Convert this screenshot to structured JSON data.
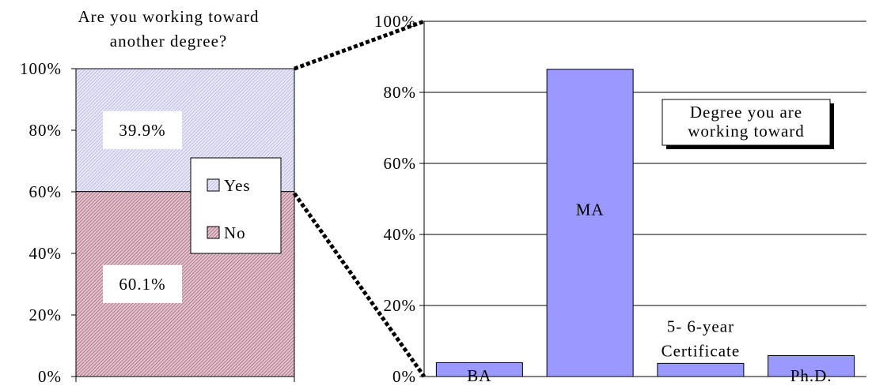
{
  "chart_data": [
    {
      "type": "bar",
      "stacked": true,
      "title": "Are you working toward another degree?",
      "title_lines": [
        "Are you working toward",
        "another degree?"
      ],
      "ylim": [
        0,
        100
      ],
      "y_ticks": [
        "0%",
        "20%",
        "40%",
        "60%",
        "80%",
        "100%"
      ],
      "series": [
        {
          "name": "No",
          "value": 60.1,
          "label": "60.1%",
          "color": "#c58b9e"
        },
        {
          "name": "Yes",
          "value": 39.9,
          "label": "39.9%",
          "color": "#c8c9ee"
        }
      ],
      "legend": [
        "Yes",
        "No"
      ],
      "legend_position": "right-overlapping"
    },
    {
      "type": "bar",
      "title": "Degree you are working toward",
      "title_lines": [
        "Degree you are",
        "working toward"
      ],
      "ylim": [
        0,
        100
      ],
      "y_ticks": [
        "0%",
        "20%",
        "40%",
        "60%",
        "80%",
        "100%"
      ],
      "grid": true,
      "bar_color": "#9999ff",
      "categories": [
        "BA",
        "MA",
        "5- 6-year Certificate",
        "Ph.D."
      ],
      "category_label_lines": [
        [
          "BA"
        ],
        [
          "MA"
        ],
        [
          "5- 6-year",
          "Certificate"
        ],
        [
          "Ph.D."
        ]
      ],
      "values": [
        3.9,
        86.5,
        3.7,
        5.9
      ]
    }
  ]
}
